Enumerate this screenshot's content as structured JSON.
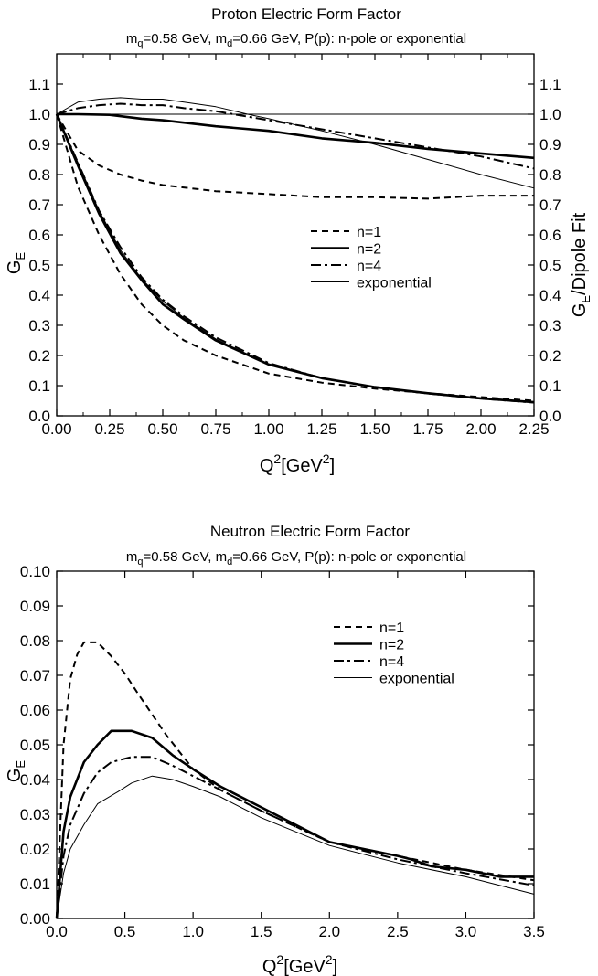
{
  "chart_data": [
    {
      "type": "line",
      "title": "Proton Electric Form Factor",
      "subtitle": "m_q=0.58 GeV, m_d=0.66 GeV, P(p): n-pole or exponential",
      "xlabel": "Q^2 [GeV^2]",
      "ylabel": "G_E",
      "y2label": "G_E/Dipole Fit",
      "xlim": [
        0,
        2.25
      ],
      "ylim": [
        0,
        1.2
      ],
      "y2lim": [
        0,
        1.2
      ],
      "xticks": [
        "0.00",
        "0.25",
        "0.50",
        "0.75",
        "1.00",
        "1.25",
        "1.50",
        "1.75",
        "2.00",
        "2.25"
      ],
      "yticks": [
        "0.0",
        "0.1",
        "0.2",
        "0.3",
        "0.4",
        "0.5",
        "0.6",
        "0.7",
        "0.8",
        "0.9",
        "1.0",
        "1.1"
      ],
      "y2ticks": [
        "0.0",
        "0.1",
        "0.2",
        "0.3",
        "0.4",
        "0.5",
        "0.6",
        "0.7",
        "0.8",
        "0.9",
        "1.0",
        "1.1"
      ],
      "grid": false,
      "legend_position": "center-right",
      "reference_line": {
        "y": 1.0
      },
      "series": [
        {
          "name": "n=1",
          "style": "dashed",
          "axis": "left",
          "x": [
            0,
            0.1,
            0.2,
            0.3,
            0.4,
            0.5,
            0.6,
            0.75,
            1.0,
            1.25,
            1.5,
            1.75,
            2.0,
            2.25
          ],
          "y": [
            1.0,
            0.76,
            0.6,
            0.47,
            0.37,
            0.3,
            0.25,
            0.2,
            0.14,
            0.11,
            0.09,
            0.075,
            0.062,
            0.05
          ]
        },
        {
          "name": "n=2",
          "style": "solid-thick",
          "axis": "left",
          "x": [
            0,
            0.1,
            0.2,
            0.3,
            0.4,
            0.5,
            0.6,
            0.75,
            1.0,
            1.25,
            1.5,
            1.75,
            2.0,
            2.25
          ],
          "y": [
            1.0,
            0.83,
            0.67,
            0.54,
            0.45,
            0.37,
            0.32,
            0.25,
            0.17,
            0.125,
            0.095,
            0.075,
            0.058,
            0.045
          ]
        },
        {
          "name": "n=4",
          "style": "dash-dot",
          "axis": "left",
          "x": [
            0,
            0.1,
            0.2,
            0.3,
            0.4,
            0.5,
            0.6,
            0.75,
            1.0,
            1.25,
            1.5,
            1.75,
            2.0,
            2.25
          ],
          "y": [
            1.0,
            0.84,
            0.68,
            0.56,
            0.46,
            0.385,
            0.33,
            0.26,
            0.175,
            0.125,
            0.095,
            0.074,
            0.057,
            0.044
          ]
        },
        {
          "name": "exponential",
          "style": "solid-thin",
          "axis": "left",
          "x": [
            0,
            0.1,
            0.2,
            0.3,
            0.4,
            0.5,
            0.6,
            0.75,
            1.0,
            1.25,
            1.5,
            1.75,
            2.0,
            2.25
          ],
          "y": [
            1.0,
            0.84,
            0.68,
            0.55,
            0.455,
            0.38,
            0.325,
            0.255,
            0.17,
            0.125,
            0.095,
            0.074,
            0.058,
            0.045
          ]
        },
        {
          "name": "n=1",
          "style": "dashed",
          "axis": "right",
          "x": [
            0,
            0.1,
            0.2,
            0.3,
            0.4,
            0.5,
            0.75,
            1.0,
            1.25,
            1.5,
            1.75,
            2.0,
            2.25
          ],
          "y": [
            1.0,
            0.88,
            0.83,
            0.8,
            0.78,
            0.765,
            0.745,
            0.735,
            0.725,
            0.725,
            0.72,
            0.73,
            0.73
          ]
        },
        {
          "name": "n=2",
          "style": "solid-thick",
          "axis": "right",
          "x": [
            0,
            0.1,
            0.25,
            0.4,
            0.5,
            0.75,
            1.0,
            1.25,
            1.5,
            1.75,
            2.0,
            2.25
          ],
          "y": [
            1.0,
            1.0,
            0.998,
            0.985,
            0.98,
            0.96,
            0.945,
            0.92,
            0.905,
            0.885,
            0.87,
            0.855
          ]
        },
        {
          "name": "n=4",
          "style": "dash-dot",
          "axis": "right",
          "x": [
            0,
            0.1,
            0.2,
            0.3,
            0.4,
            0.5,
            0.6,
            0.75,
            1.0,
            1.25,
            1.5,
            1.75,
            2.0,
            2.25
          ],
          "y": [
            1.0,
            1.02,
            1.03,
            1.035,
            1.03,
            1.03,
            1.02,
            1.01,
            0.98,
            0.95,
            0.92,
            0.89,
            0.86,
            0.82
          ]
        },
        {
          "name": "exponential",
          "style": "solid-thin",
          "axis": "right",
          "x": [
            0,
            0.1,
            0.2,
            0.3,
            0.4,
            0.5,
            0.6,
            0.75,
            0.9,
            1.0,
            1.25,
            1.5,
            1.75,
            2.0,
            2.25
          ],
          "y": [
            1.0,
            1.04,
            1.05,
            1.055,
            1.05,
            1.05,
            1.04,
            1.025,
            1.0,
            0.985,
            0.945,
            0.9,
            0.85,
            0.8,
            0.755
          ]
        }
      ]
    },
    {
      "type": "line",
      "title": "Neutron Electric Form Factor",
      "subtitle": "m_q=0.58 GeV, m_d=0.66 GeV, P(p): n-pole or exponential",
      "xlabel": "Q^2 [GeV^2]",
      "ylabel": "G_E",
      "xlim": [
        0,
        3.5
      ],
      "ylim": [
        0,
        0.1
      ],
      "xticks": [
        "0.0",
        "0.5",
        "1.0",
        "1.5",
        "2.0",
        "2.5",
        "3.0",
        "3.5"
      ],
      "yticks": [
        "0.00",
        "0.01",
        "0.02",
        "0.03",
        "0.04",
        "0.05",
        "0.06",
        "0.07",
        "0.08",
        "0.09",
        "0.10"
      ],
      "grid": false,
      "legend_position": "top-right",
      "series": [
        {
          "name": "n=1",
          "style": "dashed",
          "x": [
            0,
            0.05,
            0.1,
            0.15,
            0.2,
            0.3,
            0.4,
            0.5,
            0.6,
            0.8,
            1.0,
            1.2,
            1.5,
            2.0,
            2.5,
            3.0,
            3.5
          ],
          "y": [
            0.0,
            0.05,
            0.069,
            0.076,
            0.0795,
            0.0795,
            0.0755,
            0.0705,
            0.0645,
            0.053,
            0.043,
            0.037,
            0.031,
            0.022,
            0.018,
            0.014,
            0.011
          ]
        },
        {
          "name": "n=2",
          "style": "solid-thick",
          "x": [
            0,
            0.05,
            0.1,
            0.2,
            0.3,
            0.4,
            0.55,
            0.7,
            0.85,
            1.0,
            1.2,
            1.5,
            2.0,
            2.5,
            2.6,
            2.75,
            3.0,
            3.25,
            3.5
          ],
          "y": [
            0.0,
            0.025,
            0.035,
            0.045,
            0.05,
            0.054,
            0.054,
            0.052,
            0.047,
            0.043,
            0.038,
            0.032,
            0.022,
            0.018,
            0.017,
            0.015,
            0.014,
            0.012,
            0.012
          ]
        },
        {
          "name": "n=4",
          "style": "dash-dot",
          "x": [
            0,
            0.05,
            0.1,
            0.2,
            0.3,
            0.4,
            0.55,
            0.7,
            0.85,
            1.0,
            1.2,
            1.5,
            2.0,
            2.5,
            3.0,
            3.5
          ],
          "y": [
            0.0,
            0.018,
            0.027,
            0.036,
            0.042,
            0.045,
            0.0465,
            0.0465,
            0.044,
            0.041,
            0.037,
            0.031,
            0.022,
            0.017,
            0.013,
            0.0095
          ]
        },
        {
          "name": "exponential",
          "style": "solid-thin",
          "x": [
            0,
            0.05,
            0.1,
            0.2,
            0.3,
            0.45,
            0.55,
            0.7,
            0.85,
            1.0,
            1.2,
            1.5,
            2.0,
            2.5,
            3.0,
            3.5
          ],
          "y": [
            0.0,
            0.013,
            0.02,
            0.027,
            0.033,
            0.0365,
            0.039,
            0.041,
            0.04,
            0.038,
            0.035,
            0.029,
            0.021,
            0.016,
            0.012,
            0.007
          ]
        }
      ]
    }
  ]
}
